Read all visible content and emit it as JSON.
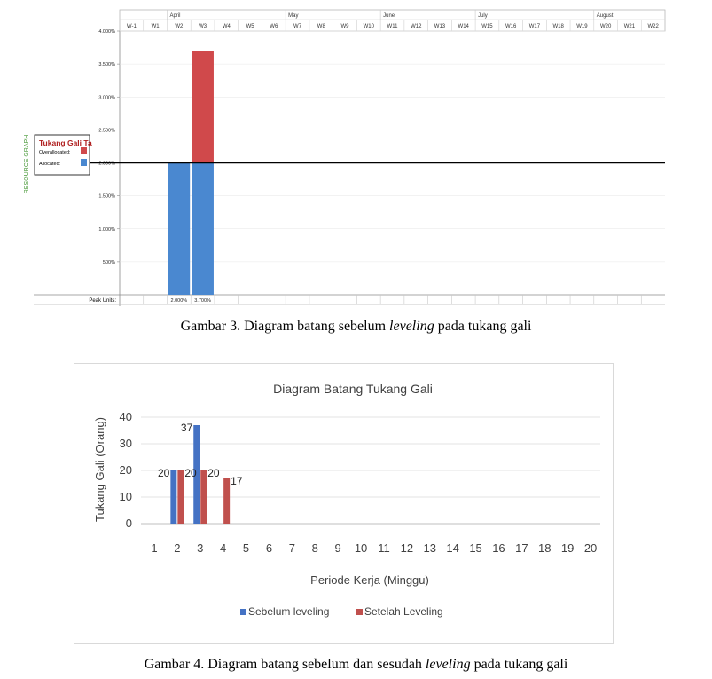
{
  "captions": {
    "fig3": {
      "prefix": "Gambar 3. Diagram batang sebelum ",
      "italic": "leveling",
      "suffix": " pada tukang gali"
    },
    "fig4": {
      "prefix": "Gambar 4. Diagram batang sebelum dan sesudah ",
      "italic": "leveling",
      "suffix": " pada tukang gali"
    }
  },
  "chart_data": [
    {
      "type": "bar",
      "side_label": "RESOURCE GRAPH",
      "months": [
        {
          "label": "April",
          "start_week": "W2"
        },
        {
          "label": "May",
          "start_week": "W7"
        },
        {
          "label": "June",
          "start_week": "W11"
        },
        {
          "label": "July",
          "start_week": "W15"
        },
        {
          "label": "August",
          "start_week": "W20"
        }
      ],
      "categories": [
        "W-1",
        "W1",
        "W2",
        "W3",
        "W4",
        "W5",
        "W6",
        "W7",
        "W8",
        "W9",
        "W10",
        "W11",
        "W12",
        "W13",
        "W14",
        "W15",
        "W16",
        "W17",
        "W18",
        "W19",
        "W20",
        "W21",
        "W22"
      ],
      "yticks": [
        "500%",
        "1.000%",
        "1.500%",
        "2.000%",
        "2.500%",
        "3.000%",
        "3.500%",
        "4.000%"
      ],
      "ytick_values": [
        500,
        1000,
        1500,
        2000,
        2500,
        3000,
        3500,
        4000
      ],
      "ylim": [
        0,
        4000
      ],
      "capacity_line": 2000,
      "series": [
        {
          "name": "Allocated:",
          "color": "#4a88d0",
          "values": [
            0,
            0,
            2000,
            2000,
            0,
            0,
            0,
            0,
            0,
            0,
            0,
            0,
            0,
            0,
            0,
            0,
            0,
            0,
            0,
            0,
            0,
            0,
            0
          ]
        },
        {
          "name": "Overallocated:",
          "color": "#d0494b",
          "values": [
            0,
            0,
            0,
            1700,
            0,
            0,
            0,
            0,
            0,
            0,
            0,
            0,
            0,
            0,
            0,
            0,
            0,
            0,
            0,
            0,
            0,
            0,
            0
          ]
        }
      ],
      "legend": {
        "title": "Tukang Gali Ta",
        "position": "left"
      },
      "peak_units": {
        "label": "Peak Units:",
        "values": [
          "",
          "",
          "2.000%",
          "3.700%",
          "",
          "",
          "",
          "",
          "",
          "",
          "",
          "",
          "",
          "",
          "",
          "",
          "",
          "",
          "",
          "",
          "",
          "",
          ""
        ]
      }
    },
    {
      "type": "bar",
      "title": "Diagram Batang Tukang Gali",
      "xlabel": "Periode Kerja (Minggu)",
      "ylabel": "Tukang Gali (Orang)",
      "categories": [
        "1",
        "2",
        "3",
        "4",
        "5",
        "6",
        "7",
        "8",
        "9",
        "10",
        "11",
        "12",
        "13",
        "14",
        "15",
        "16",
        "17",
        "18",
        "19",
        "20"
      ],
      "ylim": [
        0,
        40
      ],
      "yticks": [
        0,
        10,
        20,
        30,
        40
      ],
      "grid": true,
      "legend_position": "bottom",
      "series": [
        {
          "name": "Sebelum leveling",
          "color": "#4472c4",
          "values": [
            0,
            20,
            37,
            0,
            0,
            0,
            0,
            0,
            0,
            0,
            0,
            0,
            0,
            0,
            0,
            0,
            0,
            0,
            0,
            0
          ]
        },
        {
          "name": "Setelah Leveling",
          "color": "#c0504d",
          "values": [
            0,
            20,
            20,
            17,
            0,
            0,
            0,
            0,
            0,
            0,
            0,
            0,
            0,
            0,
            0,
            0,
            0,
            0,
            0,
            0
          ]
        }
      ]
    }
  ]
}
